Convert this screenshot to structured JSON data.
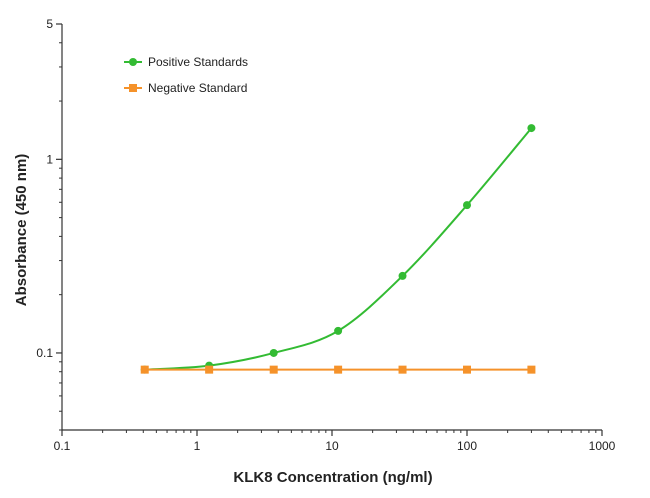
{
  "chart_data": {
    "type": "line",
    "title": "",
    "xlabel": "KLK8 Concentration (ng/ml)",
    "ylabel": "Absorbance (450 nm)",
    "x_scale": "log",
    "y_scale": "log",
    "xlim": [
      0.1,
      1000
    ],
    "ylim": [
      0.04,
      5
    ],
    "x_ticks": [
      {
        "value": 0.1,
        "label": "0.1"
      },
      {
        "value": 1,
        "label": "1"
      },
      {
        "value": 10,
        "label": "10"
      },
      {
        "value": 100,
        "label": "100"
      },
      {
        "value": 1000,
        "label": "1000"
      }
    ],
    "y_ticks": [
      {
        "value": 0.1,
        "label": "0.1"
      },
      {
        "value": 1,
        "label": "1"
      },
      {
        "value": 5,
        "label": "5"
      }
    ],
    "grid": false,
    "legend_position": "top-left",
    "series": [
      {
        "name": "Positive Standards",
        "color": "#33bb33",
        "marker": "circle",
        "x": [
          0.41,
          1.23,
          3.7,
          11.1,
          33.3,
          100,
          300
        ],
        "y": [
          0.082,
          0.086,
          0.1,
          0.13,
          0.25,
          0.58,
          1.45
        ]
      },
      {
        "name": "Negative Standard",
        "color": "#f5922a",
        "marker": "square",
        "x": [
          0.41,
          1.23,
          3.7,
          11.1,
          33.3,
          100,
          300
        ],
        "y": [
          0.082,
          0.082,
          0.082,
          0.082,
          0.082,
          0.082,
          0.082
        ]
      }
    ]
  }
}
